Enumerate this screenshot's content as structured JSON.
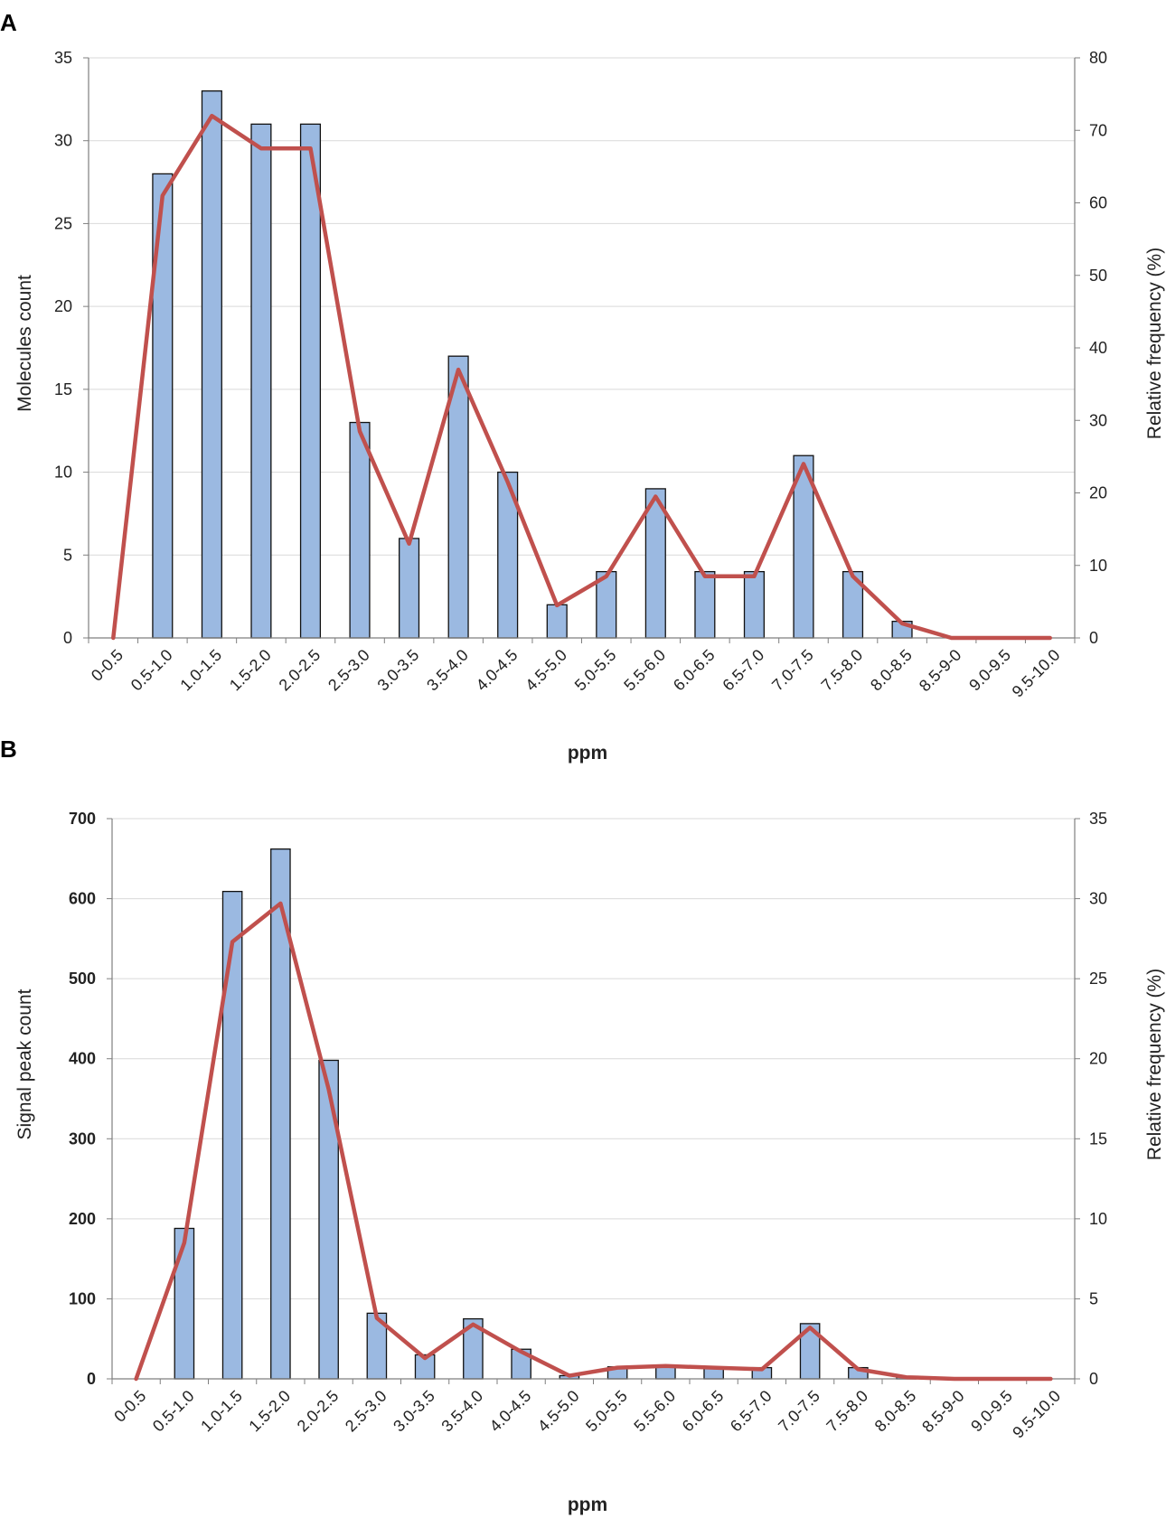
{
  "chart_data": [
    {
      "panel": "A",
      "type": "bar",
      "categories": [
        "0-0.5",
        "0.5-1.0",
        "1.0-1.5",
        "1.5-2.0",
        "2.0-2.5",
        "2.5-3.0",
        "3.0-3.5",
        "3.5-4.0",
        "4.0-4.5",
        "4.5-5.0",
        "5.0-5.5",
        "5.5-6.0",
        "6.0-6.5",
        "6.5-7.0",
        "7.0-7.5",
        "7.5-8.0",
        "8.0-8.5",
        "8.5-9-0",
        "9.0-9.5",
        "9.5-10.0"
      ],
      "series": [
        {
          "name": "Molecules count",
          "type": "bar",
          "axis": "left",
          "values": [
            0,
            28,
            33,
            31,
            31,
            13,
            6,
            17,
            10,
            2,
            4,
            9,
            4,
            4,
            11,
            4,
            1,
            0,
            0,
            0
          ]
        },
        {
          "name": "Relative frequency (%)",
          "type": "line",
          "axis": "right",
          "values": [
            0,
            61,
            72,
            67.5,
            67.5,
            28.5,
            13,
            37,
            21.5,
            4.5,
            8.5,
            19.5,
            8.5,
            8.5,
            24,
            8.5,
            2,
            0,
            0,
            0
          ]
        }
      ],
      "xlabel": "ppm",
      "ylabel": "Molecules count",
      "y2label": "Relative frequency (%)",
      "ylim": [
        0,
        35
      ],
      "y2lim": [
        0,
        80
      ],
      "yticks": [
        "0",
        "5",
        "10",
        "15",
        "20",
        "25",
        "30",
        "35"
      ],
      "y2ticks": [
        "0",
        "10",
        "20",
        "30",
        "40",
        "50",
        "60",
        "70",
        "80"
      ],
      "grid": true,
      "bold_ticks": false
    },
    {
      "panel": "B",
      "type": "bar",
      "categories": [
        "0-0.5",
        "0.5-1.0",
        "1.0-1.5",
        "1.5-2.0",
        "2.0-2.5",
        "2.5-3.0",
        "3.0-3.5",
        "3.5-4.0",
        "4.0-4.5",
        "4.5-5.0",
        "5.0-5.5",
        "5.5-6.0",
        "6.0-6.5",
        "6.5-7.0",
        "7.0-7.5",
        "7.5-8.0",
        "8.0-8.5",
        "8.5-9-0",
        "9.0-9.5",
        "9.5-10.0"
      ],
      "series": [
        {
          "name": "Signal peak count",
          "type": "bar",
          "axis": "left",
          "values": [
            0,
            188,
            609,
            662,
            398,
            82,
            30,
            75,
            37,
            4,
            15,
            16,
            15,
            14,
            69,
            14,
            3,
            1,
            0,
            0
          ]
        },
        {
          "name": "Relative frequency (%)",
          "type": "line",
          "axis": "right",
          "values": [
            0,
            8.5,
            27.3,
            29.7,
            18.1,
            3.8,
            1.3,
            3.4,
            1.7,
            0.2,
            0.7,
            0.8,
            0.7,
            0.6,
            3.2,
            0.6,
            0.1,
            0,
            0,
            0
          ]
        }
      ],
      "xlabel": "ppm",
      "ylabel": "Signal peak count",
      "y2label": "Relative frequency (%)",
      "ylim": [
        0,
        700
      ],
      "y2lim": [
        0,
        35
      ],
      "yticks": [
        "0",
        "100",
        "200",
        "300",
        "400",
        "500",
        "600",
        "700"
      ],
      "y2ticks": [
        "0",
        "5",
        "10",
        "15",
        "20",
        "25",
        "30",
        "35"
      ],
      "grid": true,
      "bold_ticks": true
    }
  ],
  "colors": {
    "bar_fill": "#9bb9e1",
    "bar_stroke": "#111111",
    "line": "#c0504d",
    "grid": "#d9d9d9",
    "axis": "#7f7f7f"
  }
}
